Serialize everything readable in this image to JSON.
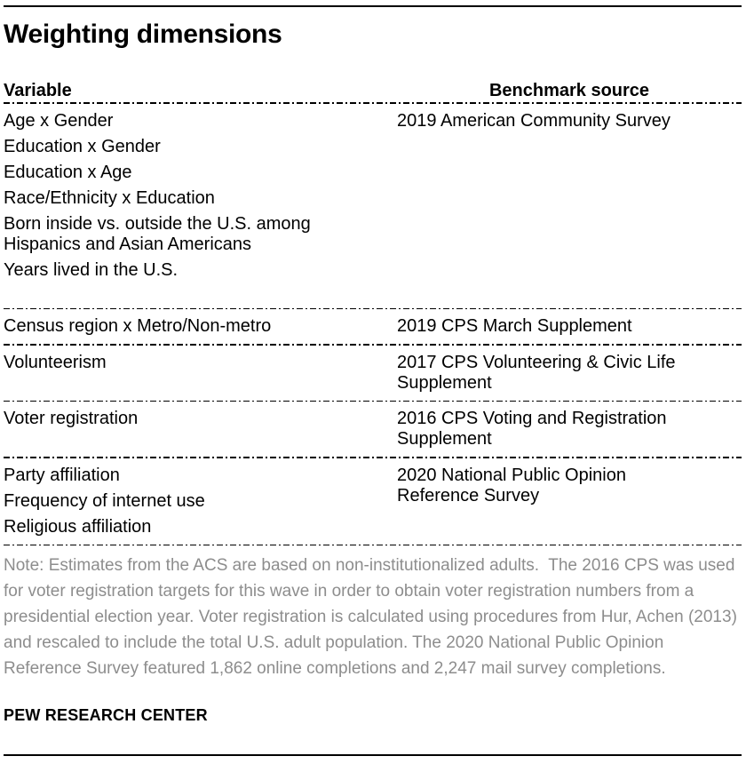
{
  "chart_data": {
    "type": "table",
    "title": "Weighting dimensions",
    "columns": [
      "Variable",
      "Benchmark source"
    ],
    "sections": [
      {
        "variables": [
          "Age x Gender",
          "Education x Gender",
          "Education x Age",
          "Race/Ethnicity x Education",
          "Born inside vs. outside the U.S. among Hispanics and Asian Americans",
          "Years lived in the U.S."
        ],
        "source": "2019 American Community Survey"
      },
      {
        "variables": [
          "Census region x Metro/Non-metro"
        ],
        "source": "2019 CPS March Supplement"
      },
      {
        "variables": [
          "Volunteerism"
        ],
        "source": "2017 CPS Volunteering & Civic Life Supplement"
      },
      {
        "variables": [
          "Voter registration"
        ],
        "source": "2016 CPS Voting and Registration Supplement"
      },
      {
        "variables": [
          "Party affiliation",
          "Frequency of internet use",
          "Religious affiliation"
        ],
        "source": "2020 National Public Opinion Reference Survey"
      }
    ],
    "note": "Note: Estimates from the ACS are based on non-institutionalized adults.  The 2016 CPS was used for voter registration targets for this wave in order to obtain voter registration numbers from a presidential election year. Voter registration is calculated using procedures from Hur, Achen (2013) and rescaled to include the total U.S. adult population. The 2020 National Public Opinion Reference Survey featured 1,862 online completions and 2,247 mail survey completions.",
    "footer": "PEW RESEARCH CENTER",
    "layout": {
      "grid": "off",
      "legend": "none"
    }
  },
  "colors": {
    "text": "#000000",
    "note_text": "#8d8d8d",
    "rule": "#000000",
    "background": "#ffffff"
  }
}
